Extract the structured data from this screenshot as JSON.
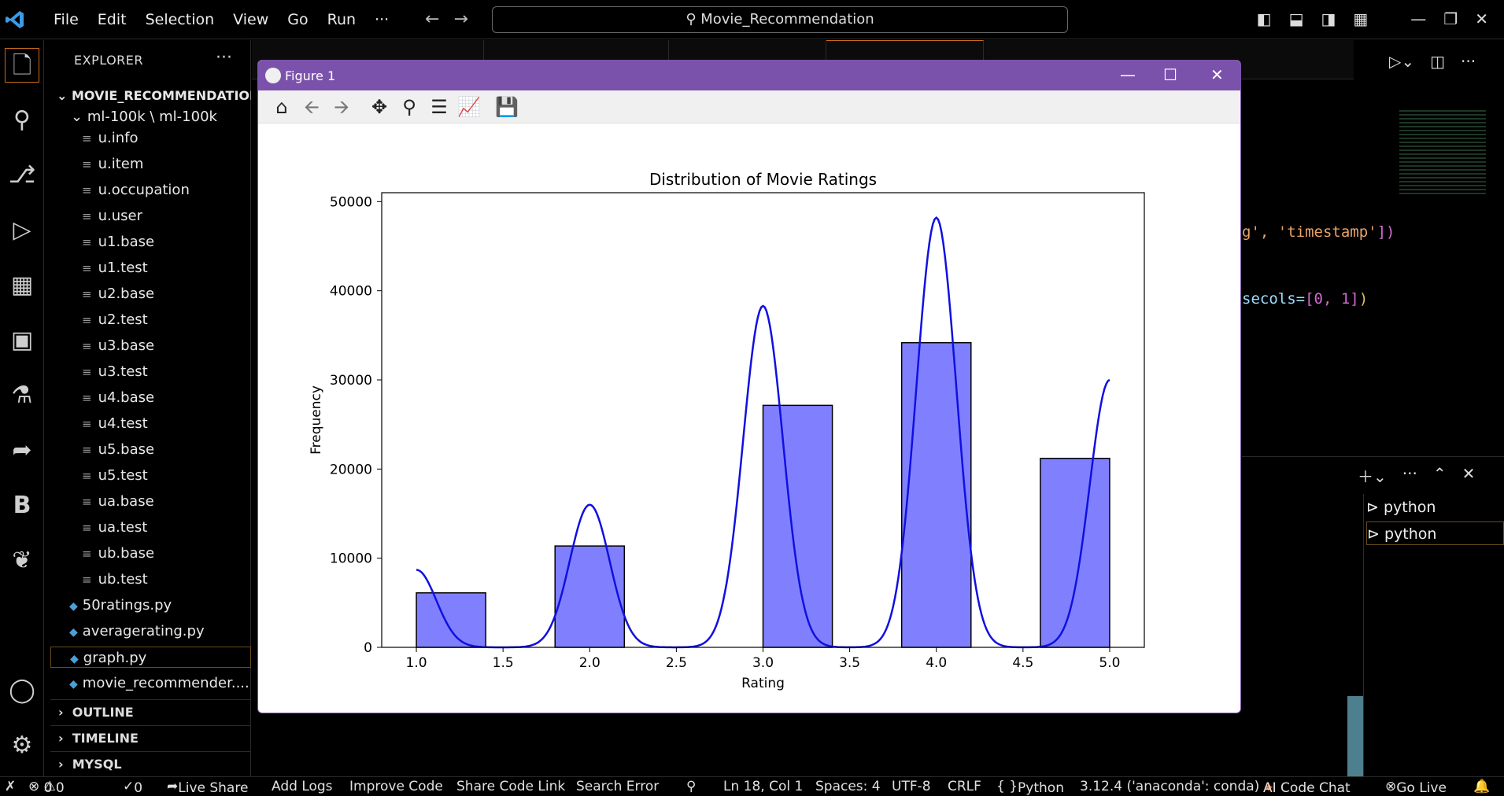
{
  "menu": [
    "File",
    "Edit",
    "Selection",
    "View",
    "Go",
    "Run",
    "···"
  ],
  "search_text": "Movie_Recommendation",
  "explorer": {
    "title": "EXPLORER",
    "project": "MOVIE_RECOMMENDATION",
    "folder": "ml-100k \\ ml-100k",
    "files": [
      "u.info",
      "u.item",
      "u.occupation",
      "u.user",
      "u1.base",
      "u1.test",
      "u2.base",
      "u2.test",
      "u3.base",
      "u3.test",
      "u4.base",
      "u4.test",
      "u5.base",
      "u5.test",
      "ua.base",
      "ua.test",
      "ub.base",
      "ub.test"
    ],
    "py_files": [
      "50ratings.py",
      "averagerating.py",
      "graph.py",
      "movie_recommender...."
    ],
    "sections": [
      "OUTLINE",
      "TIMELINE",
      "MYSQL"
    ]
  },
  "code": {
    "line1a": "g', ",
    "line1b": "'timestamp'",
    "line1c": "])",
    "line2a": "secols=",
    "line2b": "[0, 1]",
    "line2c": ")"
  },
  "terminal": {
    "items": [
      "python",
      "python"
    ]
  },
  "figure": {
    "title": "Figure 1"
  },
  "chart_data": {
    "type": "bar",
    "title": "Distribution of Movie Ratings",
    "xlabel": "Rating",
    "ylabel": "Frequency",
    "xlim": [
      0.8,
      5.2
    ],
    "ylim": [
      0,
      51000
    ],
    "xticks": [
      "1.0",
      "1.5",
      "2.0",
      "2.5",
      "3.0",
      "3.5",
      "4.0",
      "4.5",
      "5.0"
    ],
    "yticks": [
      "0",
      "10000",
      "20000",
      "30000",
      "40000",
      "50000"
    ],
    "bins": [
      {
        "left": 1.0,
        "right": 1.4,
        "value": 6110
      },
      {
        "left": 1.8,
        "right": 2.2,
        "value": 11370
      },
      {
        "left": 3.0,
        "right": 3.4,
        "value": 27145
      },
      {
        "left": 3.8,
        "right": 4.2,
        "value": 34174
      },
      {
        "left": 4.6,
        "right": 5.0,
        "value": 21201
      }
    ],
    "kde_peaks": [
      [
        1.0,
        8700
      ],
      [
        2.0,
        16000
      ],
      [
        3.0,
        38300
      ],
      [
        4.0,
        48200
      ],
      [
        5.0,
        30000
      ]
    ],
    "bar_color": "#8080ff",
    "line_color": "#1010e0"
  },
  "status": {
    "errors": "0",
    "warnings": "0",
    "ports": "0",
    "live_share": "Live Share",
    "add_logs": "Add Logs",
    "improve_code": "Improve Code",
    "share_code_link": "Share Code Link",
    "search_error": "Search Error",
    "position": "Ln 18, Col 1",
    "spaces": "Spaces: 4",
    "encoding": "UTF-8",
    "eol": "CRLF",
    "language": "Python",
    "interpreter": "3.12.4 ('anaconda': conda)",
    "ai_chat": "AI Code Chat",
    "go_live": "Go Live"
  }
}
